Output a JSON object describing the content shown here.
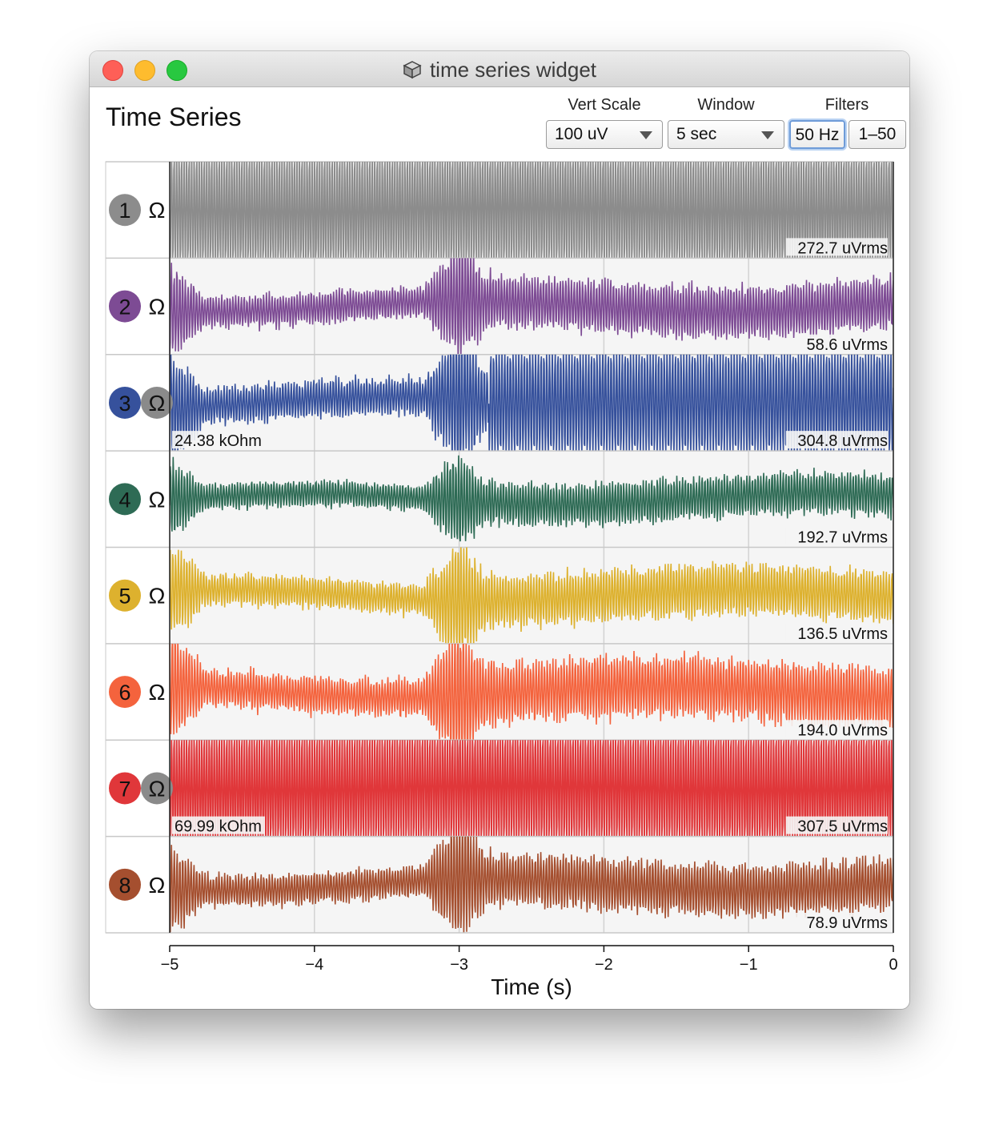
{
  "window": {
    "title": "time series widget",
    "icon": "cube-icon"
  },
  "page_title": "Time Series",
  "controls": {
    "vert_scale": {
      "label": "Vert Scale",
      "value": "100 uV"
    },
    "window": {
      "label": "Window",
      "value": "5 sec"
    },
    "filters": {
      "label": "Filters",
      "buttons": [
        "50 Hz",
        "1–50"
      ],
      "active_index": 0
    }
  },
  "chart_data": {
    "type": "line",
    "xlabel": "Time (s)",
    "xlim": [
      -5,
      0
    ],
    "xticks": [
      "−5",
      "−4",
      "−3",
      "−2",
      "−1",
      "0"
    ],
    "grid": true,
    "channels": [
      {
        "number": "1",
        "color": "#8c8c8c",
        "rms": "272.7 uVrms",
        "impedance": "",
        "railed": true
      },
      {
        "number": "2",
        "color": "#7d4b94",
        "rms": "58.6 uVrms",
        "impedance": ""
      },
      {
        "number": "3",
        "color": "#36519c",
        "rms": "304.8 uVrms",
        "impedance": "24.38 kOhm"
      },
      {
        "number": "4",
        "color": "#2e6b55",
        "rms": "192.7 uVrms",
        "impedance": ""
      },
      {
        "number": "5",
        "color": "#ddb12e",
        "rms": "136.5 uVrms",
        "impedance": ""
      },
      {
        "number": "6",
        "color": "#f4633d",
        "rms": "194.0 uVrms",
        "impedance": ""
      },
      {
        "number": "7",
        "color": "#e0373a",
        "rms": "307.5 uVrms",
        "impedance": "69.99 kOhm",
        "railed": true
      },
      {
        "number": "8",
        "color": "#a54f2f",
        "rms": "78.9 uVrms",
        "impedance": ""
      }
    ]
  }
}
